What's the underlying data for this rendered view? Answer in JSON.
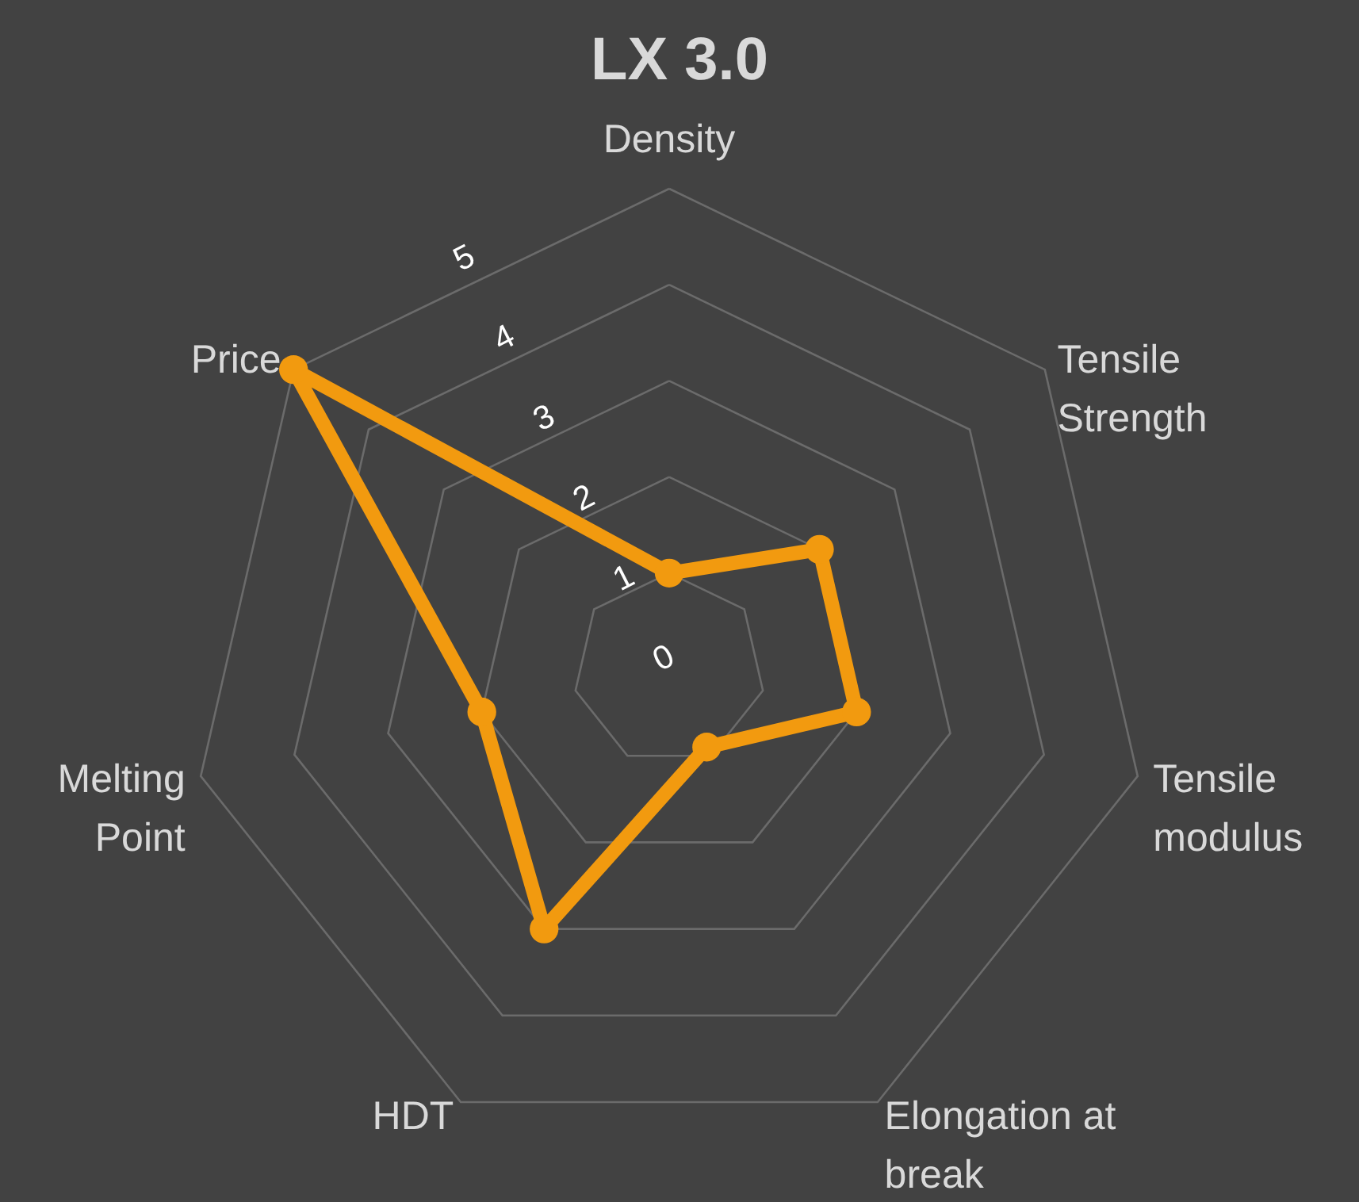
{
  "chart_data": {
    "type": "radar",
    "title": "LX 3.0",
    "categories": [
      "Density",
      "Tensile Strength",
      "Tensile modulus",
      "Elongation at break",
      "HDT",
      "Melting Point",
      "Price"
    ],
    "series": [
      {
        "color": "#f29a0f",
        "values": [
          1,
          2,
          2,
          0.9,
          3,
          2,
          5
        ]
      }
    ],
    "ylim": [
      0,
      5
    ],
    "yticks": [
      0,
      1,
      2,
      3,
      4,
      5
    ],
    "grid": true,
    "marker": "circle",
    "line_style": "solid"
  }
}
